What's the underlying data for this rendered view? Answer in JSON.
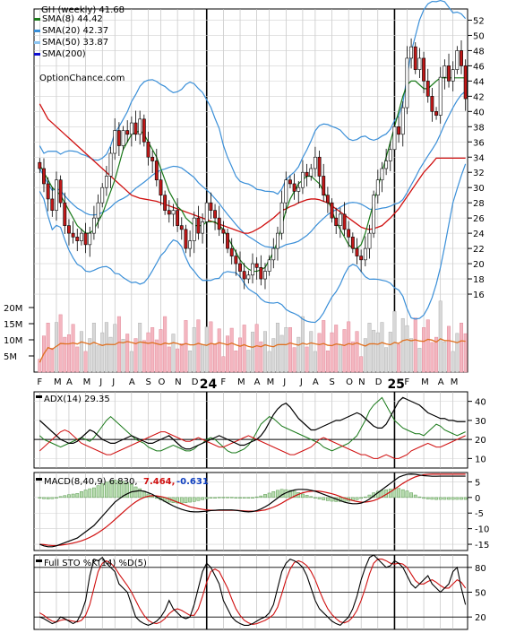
{
  "chart_data": [
    {
      "type": "candlestick",
      "title": "GH (weekly) 41.68",
      "watermark": "OptionChance.com",
      "ylim": [
        14,
        53
      ],
      "yticks": [
        16,
        18,
        20,
        22,
        24,
        26,
        28,
        30,
        32,
        34,
        36,
        38,
        40,
        42,
        44,
        46,
        48,
        50,
        52
      ],
      "x_month_labels": [
        "F",
        "M",
        "A",
        "M",
        "J",
        "J",
        "A",
        "S",
        "O",
        "N",
        "D",
        "24",
        "F",
        "M",
        "A",
        "M",
        "J",
        "J",
        "A",
        "S",
        "O",
        "N",
        "D",
        "25",
        "F",
        "M",
        "A",
        "M"
      ],
      "legend": [
        {
          "label": "SMA(8) 44.42",
          "color": "#1a7a1a"
        },
        {
          "label": "SMA(20) 42.37",
          "color": "#3a8fd8"
        },
        {
          "label": "SMA(50) 33.87",
          "color": "#8cc4f0"
        },
        {
          "label": "SMA(200)",
          "color": "#1010d0"
        }
      ],
      "close": [
        32.5,
        30.5,
        28.5,
        27.0,
        31.0,
        28.0,
        25.0,
        24.0,
        23.5,
        23.0,
        24.0,
        22.5,
        24.0,
        26.0,
        28.0,
        30.0,
        31.5,
        34.5,
        37.5,
        35.5,
        37.5,
        37.0,
        38.5,
        37.0,
        39.0,
        36.0,
        34.0,
        33.5,
        31.0,
        29.0,
        27.0,
        26.5,
        27.0,
        25.0,
        24.5,
        22.0,
        23.0,
        26.0,
        24.0,
        25.5,
        28.0,
        27.0,
        26.0,
        24.5,
        24.0,
        22.0,
        21.0,
        20.0,
        19.0,
        18.0,
        18.5,
        20.0,
        19.5,
        18.0,
        19.0,
        20.5,
        22.0,
        24.0,
        28.0,
        31.0,
        30.5,
        29.5,
        30.0,
        32.0,
        31.5,
        32.5,
        34.0,
        31.5,
        29.0,
        28.0,
        26.0,
        25.0,
        26.5,
        24.5,
        23.5,
        22.0,
        21.0,
        20.5,
        22.0,
        24.0,
        29.0,
        31.0,
        32.5,
        33.5,
        35.0,
        38.0,
        37.0,
        40.5,
        47.0,
        48.5,
        45.5,
        47.0,
        44.0,
        42.0,
        40.0,
        39.5,
        44.5,
        46.0,
        44.0,
        45.5,
        48.0,
        46.0,
        41.68
      ],
      "sma8": [
        33.0,
        32.0,
        31.0,
        30.0,
        29.5,
        29.0,
        28.0,
        27.0,
        26.0,
        25.0,
        24.5,
        24.0,
        24.0,
        24.5,
        25.5,
        26.5,
        28.0,
        29.5,
        31.0,
        33.0,
        35.0,
        36.0,
        37.0,
        37.2,
        37.5,
        37.0,
        36.0,
        35.0,
        34.0,
        32.5,
        31.0,
        29.5,
        28.5,
        27.5,
        27.0,
        26.0,
        25.5,
        25.0,
        25.0,
        25.0,
        25.5,
        25.5,
        25.5,
        25.0,
        24.5,
        23.5,
        22.5,
        21.5,
        20.5,
        19.8,
        19.3,
        19.0,
        19.0,
        19.2,
        19.5,
        20.5,
        21.5,
        23.0,
        25.0,
        27.0,
        28.5,
        29.5,
        30.5,
        31.0,
        31.5,
        31.5,
        31.0,
        30.5,
        29.5,
        28.5,
        27.0,
        25.5,
        24.5,
        23.5,
        22.5,
        22.0,
        22.0,
        22.5,
        24.0,
        26.0,
        28.0,
        30.0,
        32.0,
        34.0,
        36.0,
        38.0,
        40.0,
        42.0,
        43.5,
        44.0,
        44.0,
        43.5,
        43.0,
        43.0,
        43.5,
        44.0,
        44.42,
        44.42,
        44.42,
        44.42,
        44.42,
        44.42,
        44.42
      ],
      "sma50": [
        41.0,
        40.0,
        39.0,
        38.5,
        38.0,
        37.5,
        37.0,
        36.5,
        36.0,
        35.5,
        35.0,
        34.5,
        34.0,
        33.5,
        33.0,
        32.5,
        32.0,
        31.5,
        31.0,
        30.5,
        30.0,
        29.5,
        29.0,
        28.8,
        28.6,
        28.5,
        28.4,
        28.3,
        28.2,
        28.0,
        27.8,
        27.6,
        27.4,
        27.2,
        27.0,
        26.8,
        26.6,
        26.4,
        26.2,
        26.0,
        25.8,
        25.6,
        25.4,
        25.2,
        25.0,
        24.8,
        24.6,
        24.4,
        24.2,
        24.0,
        24.0,
        24.2,
        24.5,
        24.8,
        25.2,
        25.6,
        26.0,
        26.5,
        27.0,
        27.2,
        27.5,
        27.7,
        28.0,
        28.2,
        28.4,
        28.5,
        28.5,
        28.4,
        28.2,
        28.0,
        27.6,
        27.2,
        26.8,
        26.4,
        26.0,
        25.6,
        25.2,
        24.8,
        24.6,
        24.5,
        24.6,
        24.8,
        25.0,
        25.5,
        26.0,
        26.6,
        27.2,
        28.0,
        28.8,
        29.6,
        30.4,
        31.2,
        32.0,
        32.6,
        33.2,
        33.87,
        33.87,
        33.87,
        33.87,
        33.87,
        33.87,
        33.87,
        33.87
      ],
      "volume_axis": {
        "labels": [
          "20M",
          "15M",
          "10M",
          "5M"
        ],
        "values": [
          20,
          15,
          10,
          5
        ],
        "unit": "M"
      }
    },
    {
      "type": "line",
      "title": "ADX(14) 29.35",
      "ylim": [
        5,
        45
      ],
      "yticks": [
        10,
        20,
        30,
        40
      ],
      "adx": [
        30,
        28,
        26,
        24,
        22,
        20,
        19,
        18,
        18,
        19,
        21,
        23,
        25,
        24,
        22,
        20,
        19,
        18,
        18,
        19,
        20,
        21,
        22,
        21,
        20,
        19,
        18,
        18,
        19,
        20,
        21,
        22,
        20,
        18,
        16,
        15,
        15,
        16,
        17,
        18,
        19,
        20,
        21,
        22,
        21,
        20,
        19,
        18,
        17,
        17,
        18,
        19,
        20,
        22,
        25,
        29,
        33,
        36,
        38,
        39,
        37,
        34,
        31,
        29,
        27,
        25,
        25,
        26,
        27,
        28,
        29,
        30,
        30,
        31,
        32,
        33,
        34,
        33,
        31,
        29,
        27,
        26,
        26,
        28,
        32,
        36,
        40,
        42,
        41,
        40,
        39,
        38,
        36,
        34,
        33,
        32,
        31,
        31,
        30,
        30,
        29.35,
        29.35,
        29.35
      ],
      "plus_di": [
        22,
        20,
        19,
        18,
        17,
        16,
        17,
        18,
        19,
        20,
        21,
        20,
        19,
        21,
        24,
        27,
        30,
        32,
        30,
        28,
        26,
        24,
        22,
        20,
        19,
        18,
        16,
        15,
        14,
        14,
        15,
        16,
        17,
        16,
        15,
        14,
        14,
        15,
        17,
        18,
        20,
        21,
        20,
        18,
        16,
        14,
        13,
        13,
        14,
        15,
        17,
        20,
        24,
        28,
        30,
        32,
        31,
        29,
        27,
        26,
        25,
        24,
        23,
        22,
        21,
        20,
        19,
        18,
        16,
        15,
        14,
        15,
        16,
        17,
        18,
        20,
        22,
        26,
        30,
        35,
        38,
        40,
        42,
        38,
        34,
        30,
        28,
        26,
        25,
        24,
        23,
        23,
        22,
        24,
        26,
        28,
        27,
        25,
        24,
        23,
        22,
        23,
        24
      ],
      "minus_di": [
        14,
        16,
        18,
        20,
        22,
        24,
        25,
        24,
        22,
        20,
        18,
        17,
        16,
        15,
        14,
        13,
        12,
        12,
        13,
        14,
        15,
        16,
        17,
        18,
        19,
        20,
        21,
        22,
        23,
        24,
        24,
        23,
        22,
        21,
        20,
        19,
        19,
        20,
        21,
        20,
        19,
        18,
        17,
        16,
        16,
        17,
        18,
        19,
        20,
        21,
        22,
        21,
        20,
        19,
        18,
        17,
        16,
        15,
        14,
        13,
        12,
        12,
        13,
        14,
        15,
        16,
        18,
        20,
        21,
        20,
        19,
        18,
        17,
        16,
        15,
        14,
        13,
        12,
        12,
        11,
        10,
        10,
        11,
        12,
        11,
        10,
        10,
        11,
        12,
        14,
        15,
        16,
        17,
        18,
        17,
        16,
        16,
        17,
        18,
        19,
        20,
        21,
        22
      ]
    },
    {
      "type": "line",
      "title": "MACD(8,40,9) 6.830,",
      "values_text": [
        "7.464,",
        "-0.631"
      ],
      "ylim": [
        -17,
        8
      ],
      "yticks": [
        5,
        0,
        -5,
        -10,
        -15
      ],
      "macd": [
        -15,
        -15.5,
        -15.8,
        -15.8,
        -15.5,
        -15,
        -14.5,
        -14,
        -13.5,
        -13,
        -12,
        -11,
        -10,
        -9,
        -7.5,
        -6,
        -4.5,
        -3,
        -1.5,
        -0.5,
        0.5,
        1.2,
        1.8,
        2,
        2.2,
        2,
        1.5,
        1,
        0.2,
        -0.5,
        -1.3,
        -2,
        -2.7,
        -3.3,
        -3.8,
        -4.2,
        -4.5,
        -4.6,
        -4.6,
        -4.5,
        -4.4,
        -4.2,
        -4.1,
        -4,
        -4,
        -4,
        -4,
        -4.1,
        -4.3,
        -4.5,
        -4.6,
        -4.5,
        -4.2,
        -3.7,
        -3,
        -2.2,
        -1.2,
        -0.2,
        0.8,
        1.5,
        2,
        2.4,
        2.6,
        2.6,
        2.5,
        2.3,
        2,
        1.5,
        1,
        0.5,
        0,
        -0.5,
        -1,
        -1.5,
        -1.8,
        -2,
        -2,
        -1.8,
        -1.3,
        -0.5,
        0.5,
        1.5,
        2.5,
        3.5,
        4.5,
        5.5,
        6.5,
        7,
        7.4,
        7.5,
        7.4,
        7.2,
        7,
        6.9,
        6.8,
        6.8,
        6.83,
        6.83,
        6.83,
        6.83,
        6.83,
        6.83,
        6.83
      ],
      "signal": [
        -15,
        -15.1,
        -15.3,
        -15.4,
        -15.4,
        -15.3,
        -15.1,
        -14.9,
        -14.6,
        -14.3,
        -13.9,
        -13.4,
        -12.8,
        -12.1,
        -11.3,
        -10.4,
        -9.4,
        -8.3,
        -7.1,
        -5.9,
        -4.7,
        -3.5,
        -2.4,
        -1.4,
        -0.6,
        0,
        0.4,
        0.6,
        0.5,
        0.3,
        0,
        -0.5,
        -1,
        -1.5,
        -2,
        -2.5,
        -3,
        -3.3,
        -3.6,
        -3.8,
        -4,
        -4.1,
        -4.1,
        -4.1,
        -4.1,
        -4.1,
        -4.1,
        -4.1,
        -4.2,
        -4.3,
        -4.4,
        -4.4,
        -4.4,
        -4.2,
        -4,
        -3.6,
        -3.1,
        -2.5,
        -1.8,
        -1,
        -0.3,
        0.4,
        1,
        1.5,
        1.8,
        2,
        2.1,
        2,
        1.8,
        1.5,
        1.2,
        0.8,
        0.3,
        -0.2,
        -0.6,
        -1,
        -1.3,
        -1.5,
        -1.5,
        -1.3,
        -1,
        -0.5,
        0.2,
        1,
        1.8,
        2.7,
        3.6,
        4.5,
        5.3,
        6,
        6.6,
        7,
        7.3,
        7.4,
        7.46,
        7.46,
        7.46,
        7.46,
        7.46,
        7.46,
        7.46,
        7.46,
        7.46
      ],
      "hist": [
        0,
        -0.4,
        -0.5,
        -0.4,
        -0.1,
        0.3,
        0.6,
        0.9,
        1.1,
        1.3,
        1.9,
        2.4,
        2.8,
        3.1,
        3.8,
        4.4,
        4.9,
        5.3,
        5.6,
        5.4,
        5.2,
        4.7,
        4.2,
        3.4,
        2.8,
        2,
        1.1,
        0.4,
        -0.3,
        -0.8,
        -1.3,
        -1.5,
        -1.7,
        -1.8,
        -1.8,
        -1.7,
        -1.5,
        -1.3,
        -1,
        -0.7,
        -0.4,
        -0.1,
        0,
        0.1,
        0.1,
        0.1,
        0.1,
        0,
        -0.1,
        -0.2,
        -0.2,
        -0.1,
        0.2,
        0.5,
        1,
        1.4,
        1.9,
        2.3,
        2.6,
        2.5,
        2.3,
        2,
        1.6,
        1.1,
        0.7,
        0.3,
        -0.1,
        -0.5,
        -0.8,
        -1,
        -1.2,
        -1.3,
        -1.3,
        -1.3,
        -1.2,
        -1,
        -0.7,
        -0.3,
        0.2,
        0.8,
        1.5,
        2,
        2.3,
        2.5,
        2.7,
        2.8,
        2.9,
        2.5,
        2.1,
        1.5,
        0.8,
        0.2,
        -0.3,
        -0.5,
        -0.6,
        -0.66,
        -0.63,
        -0.63,
        -0.63,
        -0.63,
        -0.63,
        -0.63,
        -0.63
      ]
    },
    {
      "type": "line",
      "title": "Full STO %K(14) %D(5)",
      "ylim": [
        5,
        95
      ],
      "yticks": [
        80,
        50,
        20
      ],
      "k": [
        20,
        18,
        15,
        12,
        14,
        20,
        18,
        15,
        12,
        15,
        25,
        40,
        70,
        90,
        88,
        92,
        85,
        80,
        75,
        60,
        55,
        50,
        35,
        20,
        15,
        12,
        10,
        12,
        15,
        20,
        28,
        40,
        30,
        25,
        20,
        18,
        20,
        35,
        55,
        75,
        85,
        80,
        70,
        60,
        40,
        30,
        20,
        15,
        12,
        10,
        10,
        12,
        15,
        18,
        20,
        25,
        35,
        55,
        75,
        85,
        90,
        88,
        85,
        80,
        70,
        55,
        40,
        30,
        25,
        20,
        15,
        12,
        10,
        15,
        20,
        30,
        45,
        65,
        80,
        92,
        95,
        90,
        85,
        80,
        82,
        88,
        85,
        80,
        70,
        60,
        55,
        60,
        65,
        70,
        60,
        55,
        50,
        55,
        60,
        75,
        80,
        55,
        35
      ],
      "d": [
        25,
        22,
        18,
        15,
        14,
        16,
        17,
        16,
        15,
        14,
        16,
        22,
        35,
        55,
        75,
        85,
        88,
        85,
        80,
        72,
        65,
        58,
        50,
        40,
        30,
        22,
        16,
        13,
        12,
        14,
        18,
        24,
        28,
        30,
        28,
        25,
        22,
        22,
        30,
        45,
        62,
        75,
        78,
        75,
        65,
        55,
        42,
        30,
        22,
        16,
        13,
        11,
        12,
        14,
        16,
        19,
        23,
        32,
        48,
        65,
        78,
        86,
        88,
        86,
        82,
        75,
        65,
        52,
        40,
        30,
        23,
        18,
        14,
        13,
        15,
        20,
        28,
        40,
        55,
        72,
        85,
        90,
        90,
        88,
        85,
        84,
        85,
        84,
        80,
        72,
        64,
        60,
        60,
        63,
        65,
        62,
        58,
        55,
        55,
        60,
        65,
        62,
        55
      ]
    }
  ]
}
